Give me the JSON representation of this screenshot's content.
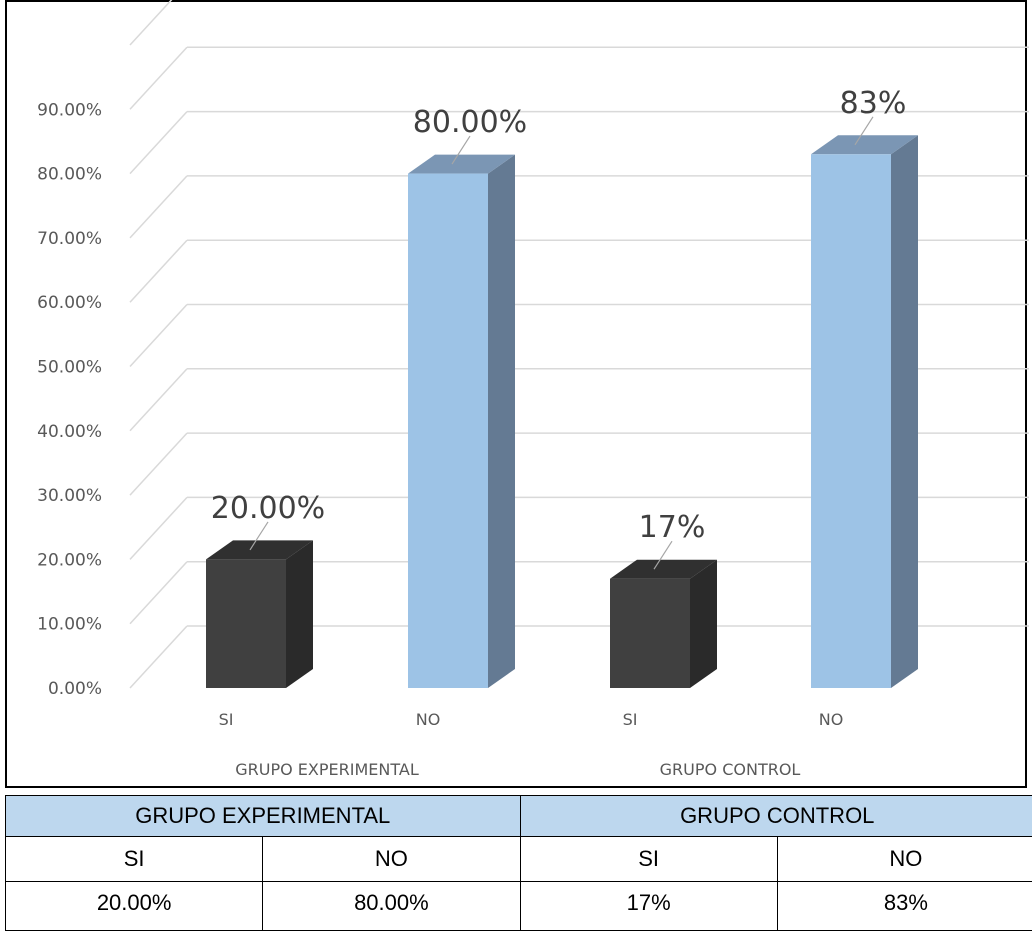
{
  "chart_data": {
    "type": "bar",
    "title": "",
    "xlabel": "",
    "ylabel": "",
    "ylim": [
      0,
      1.0
    ],
    "y_ticks": [
      "0.00%",
      "10.00%",
      "20.00%",
      "30.00%",
      "40.00%",
      "50.00%",
      "60.00%",
      "70.00%",
      "80.00%",
      "90.00%"
    ],
    "grid": true,
    "style": "3d-column",
    "groups": [
      "GRUPO EXPERIMENTAL",
      "GRUPO CONTROL"
    ],
    "categories": [
      "SI",
      "NO",
      "SI",
      "NO"
    ],
    "values": [
      0.2,
      0.8,
      0.17,
      0.83
    ],
    "data_labels": [
      "20.00%",
      "80.00%",
      "17%",
      "83%"
    ],
    "colors": {
      "SI": "#404040",
      "NO": "#9dc3e6"
    }
  },
  "table": {
    "groups": [
      "GRUPO EXPERIMENTAL",
      "GRUPO CONTROL"
    ],
    "headers": [
      "SI",
      "NO",
      "SI",
      "NO"
    ],
    "values": [
      "20.00%",
      "80.00%",
      "17%",
      "83%"
    ],
    "header_color": "#bdd7ee"
  }
}
